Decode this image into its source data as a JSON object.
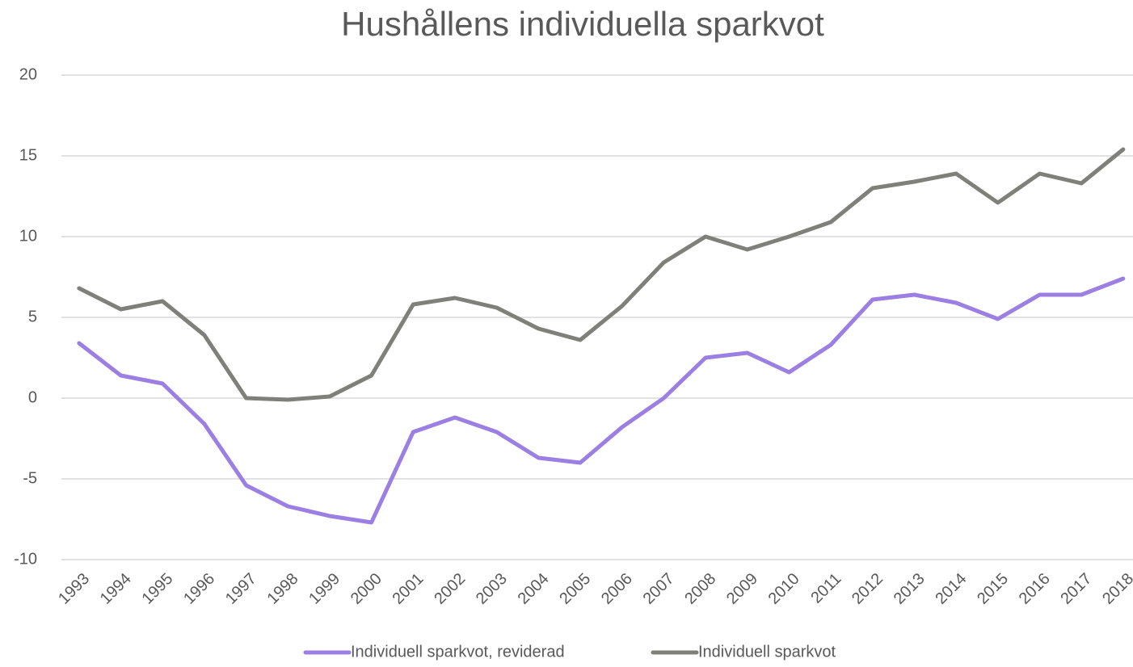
{
  "chart_data": {
    "type": "line",
    "title": "Hushållens individuella sparkvot",
    "categories": [
      "1993",
      "1994",
      "1995",
      "1996",
      "1997",
      "1998",
      "1999",
      "2000",
      "2001",
      "2002",
      "2003",
      "2004",
      "2005",
      "2006",
      "2007",
      "2008",
      "2009",
      "2010",
      "2011",
      "2012",
      "2013",
      "2014",
      "2015",
      "2016",
      "2017",
      "2018"
    ],
    "series": [
      {
        "name": "Individuell sparkvot, reviderad",
        "color": "#9b7fe2",
        "values": [
          3.4,
          1.4,
          0.9,
          -1.6,
          -5.4,
          -6.7,
          -7.3,
          -7.7,
          -2.1,
          -1.2,
          -2.1,
          -3.7,
          -4.0,
          -1.8,
          0,
          2.5,
          2.8,
          1.6,
          3.3,
          6.1,
          6.4,
          5.9,
          4.9,
          6.4,
          6.4,
          7.4
        ]
      },
      {
        "name": "Individuell sparkvot",
        "color": "#80807a",
        "values": [
          6.8,
          5.5,
          6.0,
          3.9,
          0,
          -0.1,
          0.1,
          1.4,
          5.8,
          6.2,
          5.6,
          4.3,
          3.6,
          5.7,
          8.4,
          10.0,
          9.2,
          10.0,
          10.9,
          13.0,
          13.4,
          13.9,
          12.1,
          13.9,
          13.3,
          15.4
        ]
      }
    ],
    "ylim": [
      -10,
      20
    ],
    "yticks": [
      -10,
      -5,
      0,
      5,
      10,
      15,
      20
    ],
    "grid": true,
    "legend": "bottom"
  }
}
